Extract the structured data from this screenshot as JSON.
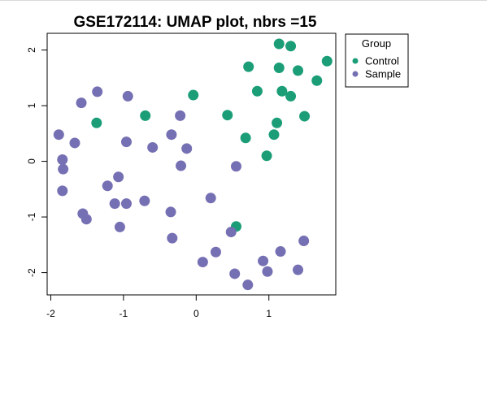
{
  "chart_data": {
    "type": "scatter",
    "title": "GSE172114: UMAP plot, nbrs =15",
    "xlabel": "",
    "ylabel": "",
    "xlim": [
      -2.05,
      1.92
    ],
    "ylim": [
      -2.4,
      2.3
    ],
    "x_ticks": [
      -2,
      -1,
      0,
      1
    ],
    "x_tick_labels": [
      "-2",
      "-1",
      "0",
      "1"
    ],
    "y_ticks": [
      -2,
      -1,
      0,
      1,
      2
    ],
    "y_tick_labels": [
      "-2",
      "-1",
      "0",
      "1",
      "2"
    ],
    "grid": false,
    "legend": {
      "title": "Group",
      "placement": "right-top-outside"
    },
    "series": [
      {
        "name": "Control",
        "color": "#1b9e77",
        "points": [
          [
            1.14,
            2.11
          ],
          [
            1.3,
            2.07
          ],
          [
            1.8,
            1.8
          ],
          [
            0.72,
            1.7
          ],
          [
            1.14,
            1.68
          ],
          [
            1.4,
            1.63
          ],
          [
            1.66,
            1.45
          ],
          [
            0.84,
            1.26
          ],
          [
            1.18,
            1.26
          ],
          [
            1.3,
            1.17
          ],
          [
            -0.04,
            1.19
          ],
          [
            -1.37,
            0.69
          ],
          [
            -0.7,
            0.82
          ],
          [
            0.43,
            0.83
          ],
          [
            1.49,
            0.81
          ],
          [
            1.11,
            0.69
          ],
          [
            1.07,
            0.48
          ],
          [
            0.68,
            0.42
          ],
          [
            0.97,
            0.1
          ],
          [
            0.55,
            -1.17
          ]
        ]
      },
      {
        "name": "Sample",
        "color": "#7570b3",
        "points": [
          [
            -1.36,
            1.25
          ],
          [
            -0.94,
            1.17
          ],
          [
            -1.58,
            1.05
          ],
          [
            -0.22,
            0.82
          ],
          [
            -1.89,
            0.48
          ],
          [
            -0.34,
            0.48
          ],
          [
            -1.67,
            0.33
          ],
          [
            -0.96,
            0.35
          ],
          [
            -0.6,
            0.25
          ],
          [
            -0.13,
            0.23
          ],
          [
            -1.84,
            0.03
          ],
          [
            -1.83,
            -0.14
          ],
          [
            0.55,
            -0.09
          ],
          [
            -0.21,
            -0.08
          ],
          [
            -1.07,
            -0.28
          ],
          [
            -1.22,
            -0.44
          ],
          [
            -1.84,
            -0.53
          ],
          [
            0.2,
            -0.66
          ],
          [
            -0.71,
            -0.71
          ],
          [
            -1.12,
            -0.76
          ],
          [
            -0.96,
            -0.76
          ],
          [
            -0.35,
            -0.91
          ],
          [
            -1.56,
            -0.94
          ],
          [
            -1.51,
            -1.04
          ],
          [
            -1.05,
            -1.18
          ],
          [
            0.48,
            -1.27
          ],
          [
            -0.33,
            -1.38
          ],
          [
            1.48,
            -1.43
          ],
          [
            0.27,
            -1.63
          ],
          [
            1.16,
            -1.62
          ],
          [
            0.09,
            -1.81
          ],
          [
            0.92,
            -1.79
          ],
          [
            0.53,
            -2.02
          ],
          [
            0.98,
            -1.98
          ],
          [
            1.4,
            -1.95
          ],
          [
            0.71,
            -2.22
          ]
        ]
      }
    ]
  }
}
